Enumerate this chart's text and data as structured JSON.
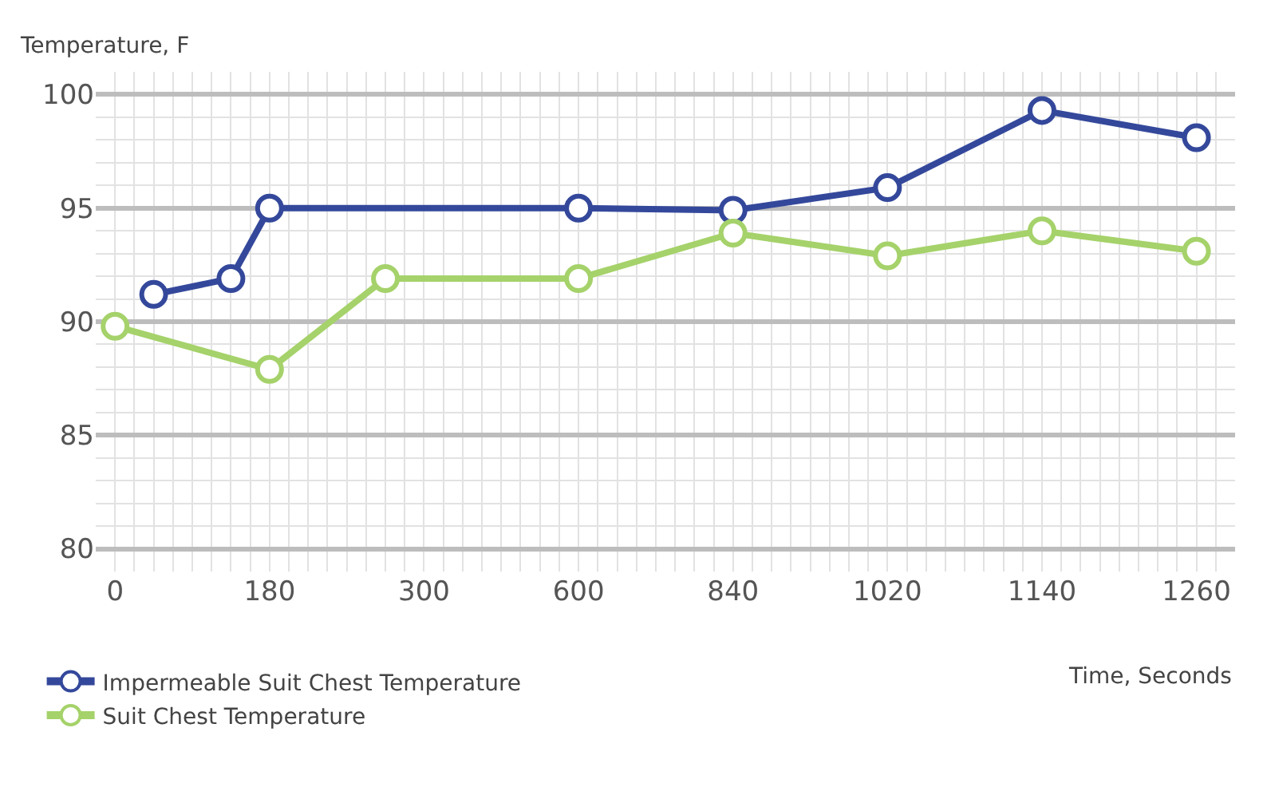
{
  "chart_data": {
    "type": "line",
    "xlabel": "Time, Seconds",
    "ylabel": "Temperature, F",
    "categories": [
      "0",
      null,
      null,
      null,
      "180",
      null,
      null,
      null,
      "300",
      null,
      null,
      null,
      "600",
      null,
      null,
      null,
      "840",
      null,
      null,
      null,
      "1020",
      null,
      null,
      null,
      "1140",
      null,
      null,
      null,
      "1260"
    ],
    "ylim": [
      79,
      101
    ],
    "yticks": [
      80,
      85,
      90,
      95,
      100
    ],
    "series": [
      {
        "name": "Impermeable Suit Chest Temperature",
        "color": "#34489b",
        "values": [
          null,
          91.2,
          null,
          91.9,
          95.0,
          null,
          null,
          null,
          null,
          null,
          null,
          null,
          95.0,
          null,
          null,
          null,
          94.9,
          null,
          null,
          null,
          95.9,
          null,
          null,
          null,
          99.3,
          null,
          null,
          null,
          98.1
        ]
      },
      {
        "name": "Suit Chest Temperature",
        "color": "#a5d26a",
        "values": [
          89.8,
          null,
          null,
          null,
          87.9,
          null,
          null,
          91.9,
          null,
          null,
          null,
          null,
          91.9,
          null,
          null,
          null,
          93.9,
          null,
          null,
          null,
          92.9,
          null,
          null,
          null,
          94.0,
          null,
          null,
          null,
          93.1
        ]
      }
    ],
    "grid": true,
    "legend": "bottom left",
    "marker": "circle",
    "line_style": "solid"
  }
}
